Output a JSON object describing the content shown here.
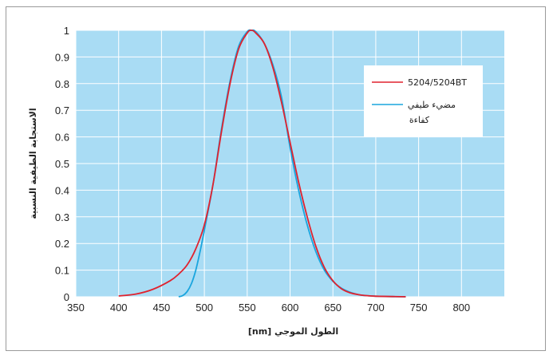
{
  "chart_data": {
    "type": "line",
    "title": "",
    "xlabel": "الطول الموجي [nm]",
    "ylabel": "الاستجابة الطيفية النسبية",
    "xlim": [
      350,
      850
    ],
    "ylim": [
      0,
      1
    ],
    "x_ticks": [
      "350",
      "400",
      "450",
      "500",
      "550",
      "600",
      "650",
      "700",
      "750",
      "800"
    ],
    "y_ticks": [
      "0",
      "0.1",
      "0.2",
      "0.3",
      "0.4",
      "0.5",
      "0.6",
      "0.7",
      "0.8",
      "0.9",
      "1"
    ],
    "grid": true,
    "legend_position": "top-right",
    "plot_background": "#a9dcf4",
    "series": [
      {
        "name": "5204/5204BT",
        "color": "#e0222e",
        "x": [
          400,
          420,
          440,
          460,
          470,
          480,
          490,
          500,
          510,
          520,
          530,
          540,
          550,
          555,
          560,
          570,
          580,
          590,
          600,
          610,
          620,
          630,
          640,
          650,
          660,
          670,
          680,
          690,
          700,
          720,
          735
        ],
        "y": [
          0.003,
          0.01,
          0.028,
          0.06,
          0.085,
          0.12,
          0.18,
          0.27,
          0.42,
          0.62,
          0.8,
          0.93,
          0.99,
          1.0,
          0.99,
          0.95,
          0.86,
          0.73,
          0.58,
          0.43,
          0.3,
          0.19,
          0.11,
          0.06,
          0.03,
          0.015,
          0.008,
          0.004,
          0.002,
          0.001,
          0.0
        ]
      },
      {
        "name": "مضيء طيفي كفاءة",
        "name_lines": [
          "مضيء طيفي",
          "كفاءة"
        ],
        "color": "#1aa5de",
        "x": [
          470,
          475,
          480,
          485,
          490,
          495,
          500,
          510,
          520,
          530,
          540,
          550,
          555,
          560,
          570,
          580,
          590,
          600,
          610,
          620,
          630,
          640,
          650,
          660,
          670,
          680,
          690,
          700,
          720,
          735
        ],
        "y": [
          0.0,
          0.005,
          0.02,
          0.05,
          0.1,
          0.17,
          0.25,
          0.42,
          0.63,
          0.81,
          0.94,
          0.995,
          1.0,
          0.995,
          0.95,
          0.87,
          0.75,
          0.56,
          0.4,
          0.27,
          0.17,
          0.1,
          0.058,
          0.032,
          0.017,
          0.008,
          0.004,
          0.002,
          0.0005,
          0.0
        ]
      }
    ]
  }
}
